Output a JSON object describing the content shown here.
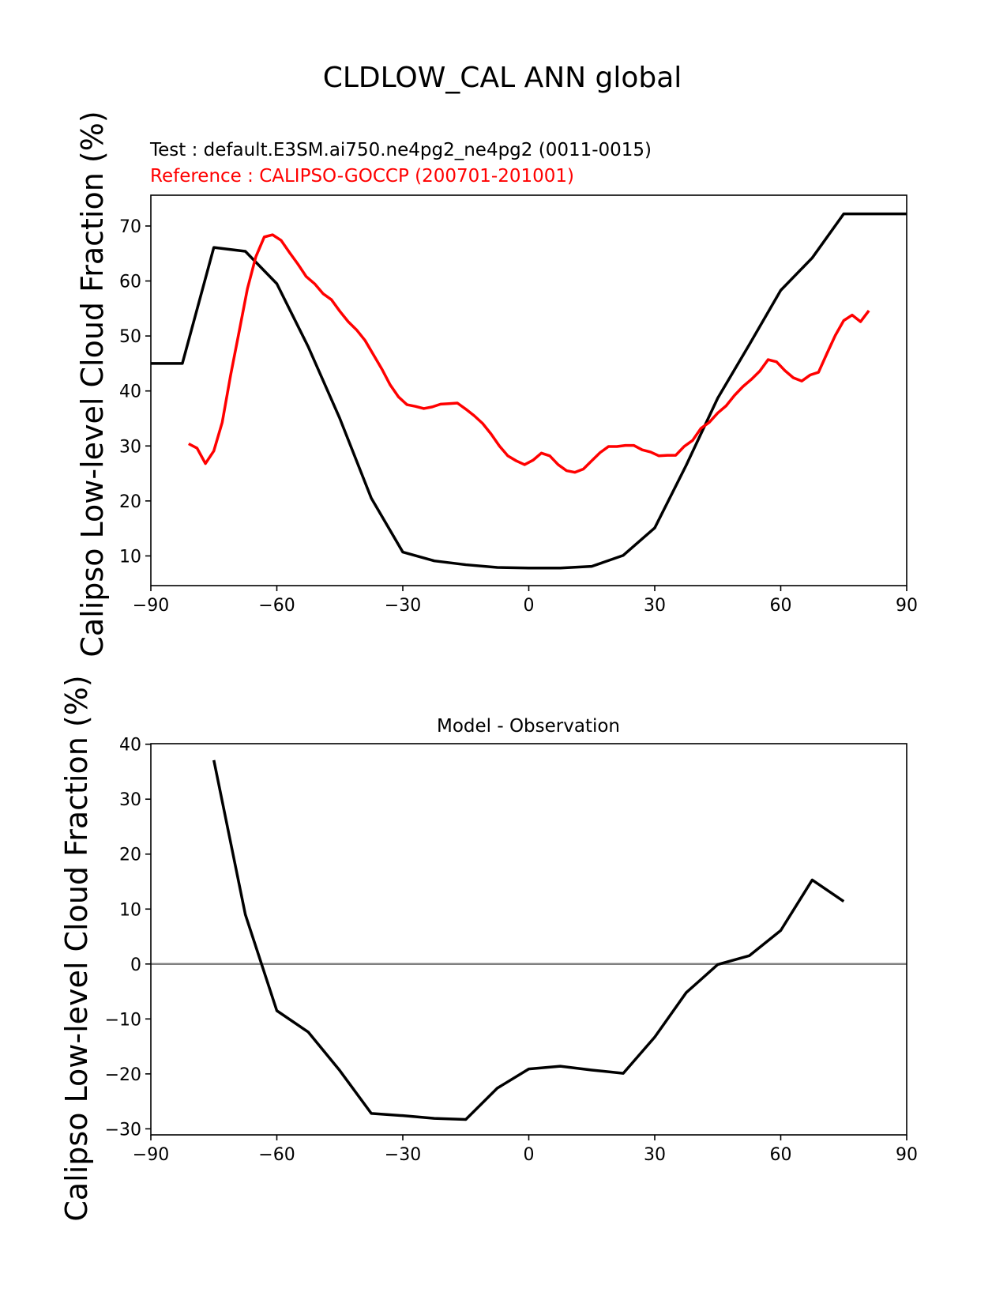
{
  "figure": {
    "title": "CLDLOW_CAL ANN global"
  },
  "chart_data": [
    {
      "type": "line",
      "subtitle_test": "Test : default.E3SM.ai750.ne4pg2_ne4pg2 (0011-0015)",
      "subtitle_ref": "Reference : CALIPSO-GOCCP (200701-201001)",
      "xlabel": "",
      "ylabel": "Calipso Low-level Cloud Fraction (%)",
      "xlim": [
        -90,
        90
      ],
      "ylim": [
        4.6,
        75.6
      ],
      "xticks": [
        -90,
        -60,
        -30,
        0,
        30,
        60,
        90
      ],
      "yticks": [
        10,
        20,
        30,
        40,
        50,
        60,
        70
      ],
      "grid": false,
      "colors": {
        "test": "#000000",
        "reference": "#ff0000"
      },
      "series": [
        {
          "key": "test",
          "x": [
            -90,
            -82.5,
            -75,
            -67.5,
            -60,
            -52.5,
            -45,
            -37.5,
            -30,
            -22.5,
            -15,
            -7.5,
            0,
            7.5,
            15,
            22.5,
            30,
            37.5,
            45,
            52.5,
            60,
            67.5,
            75,
            82.5,
            90
          ],
          "values": [
            45.0,
            45.0,
            66.1,
            65.4,
            59.5,
            48.0,
            35.0,
            20.5,
            10.7,
            9.1,
            8.4,
            7.9,
            7.8,
            7.8,
            8.1,
            10.1,
            15.1,
            26.5,
            38.7,
            48.4,
            58.3,
            64.2,
            72.2,
            72.2,
            72.2
          ]
        },
        {
          "key": "reference",
          "x": [
            -81,
            -79,
            -77,
            -75,
            -73,
            -71,
            -69,
            -67,
            -65,
            -63,
            -61,
            -59,
            -57,
            -55,
            -53,
            -51,
            -49,
            -47,
            -45,
            -43,
            -41,
            -39,
            -37,
            -35,
            -33,
            -31,
            -29,
            -27,
            -25,
            -23,
            -21,
            -19,
            -17,
            -15,
            -13,
            -11,
            -9,
            -7,
            -5,
            -3,
            -1,
            1,
            3,
            5,
            7,
            9,
            11,
            13,
            15,
            17,
            19,
            21,
            23,
            25,
            27,
            29,
            31,
            33,
            35,
            37,
            39,
            41,
            43,
            45,
            47,
            49,
            51,
            53,
            55,
            57,
            59,
            61,
            63,
            65,
            67,
            69,
            71,
            73,
            75,
            77,
            79,
            81
          ],
          "values": [
            30.4,
            29.6,
            26.8,
            29.1,
            34.3,
            42.9,
            50.7,
            58.6,
            64.4,
            68.0,
            68.4,
            67.4,
            65.2,
            63.1,
            60.8,
            59.5,
            57.7,
            56.6,
            54.5,
            52.6,
            51.1,
            49.2,
            46.6,
            44.0,
            41.1,
            38.9,
            37.5,
            37.2,
            36.8,
            37.1,
            37.6,
            37.7,
            37.8,
            36.7,
            35.5,
            34.1,
            32.2,
            30.0,
            28.2,
            27.3,
            26.6,
            27.4,
            28.7,
            28.2,
            26.6,
            25.5,
            25.2,
            25.8,
            27.3,
            28.8,
            29.9,
            29.9,
            30.1,
            30.1,
            29.3,
            28.9,
            28.2,
            28.3,
            28.3,
            29.9,
            31.0,
            33.2,
            34.3,
            36.0,
            37.3,
            39.2,
            40.8,
            42.1,
            43.6,
            45.7,
            45.3,
            43.7,
            42.4,
            41.8,
            42.9,
            43.4,
            46.8,
            50.1,
            52.8,
            53.8,
            52.6,
            54.6
          ]
        }
      ]
    },
    {
      "type": "line",
      "title": "Model - Observation",
      "xlabel": "",
      "ylabel": "Calipso Low-level Cloud Fraction (%)",
      "xlim": [
        -90,
        90
      ],
      "ylim": [
        -31.1,
        40.1
      ],
      "xticks": [
        -90,
        -60,
        -30,
        0,
        30,
        60,
        90
      ],
      "yticks": [
        -30,
        -20,
        -10,
        0,
        10,
        20,
        30,
        40
      ],
      "grid": false,
      "zero_line_color": "#808080",
      "series": [
        {
          "key": "difference",
          "x": [
            -75,
            -67.5,
            -60,
            -52.5,
            -45,
            -37.5,
            -30,
            -22.5,
            -15,
            -7.5,
            0,
            7.5,
            15,
            22.5,
            30,
            37.5,
            45,
            52.5,
            60,
            67.5,
            75
          ],
          "values": [
            37.1,
            9.0,
            -8.5,
            -12.4,
            -19.4,
            -27.2,
            -27.6,
            -28.1,
            -28.3,
            -22.6,
            -19.1,
            -18.6,
            -19.3,
            -19.9,
            -13.3,
            -5.2,
            -0.1,
            1.5,
            6.1,
            15.3,
            11.4
          ]
        }
      ]
    }
  ]
}
